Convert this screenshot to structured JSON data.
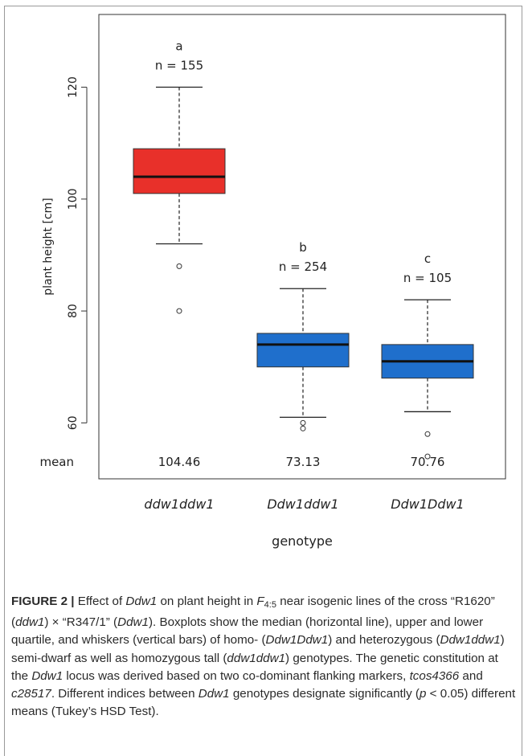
{
  "chart_data": {
    "type": "box",
    "ylabel": "plant height [cm]",
    "xlabel": "genotype",
    "ylim": [
      50,
      133
    ],
    "yticks": [
      60,
      80,
      100,
      120
    ],
    "row_label": "mean",
    "colors": {
      "ddw1ddw1": "#e8302a",
      "Ddw1ddw1": "#1f6fcc",
      "Ddw1Ddw1": "#1f6fcc"
    },
    "groups": [
      {
        "category": "ddw1ddw1",
        "letter": "a",
        "n_label": "n = 155",
        "mean": "104.46",
        "min": 92,
        "q1": 101,
        "median": 104,
        "q3": 109,
        "max": 120,
        "outliers": [
          88,
          80
        ]
      },
      {
        "category": "Ddw1ddw1",
        "letter": "b",
        "n_label": "n = 254",
        "mean": "73.13",
        "min": 61,
        "q1": 70,
        "median": 74,
        "q3": 76,
        "max": 84,
        "outliers": [
          60,
          59
        ]
      },
      {
        "category": "Ddw1Ddw1",
        "letter": "c",
        "n_label": "n = 105",
        "mean": "70.76",
        "min": 62,
        "q1": 68,
        "median": 71,
        "q3": 74,
        "max": 82,
        "outliers": [
          58,
          54
        ]
      }
    ]
  },
  "caption": {
    "label": "FIGURE 2 |",
    "t1": " Effect of ",
    "ddw1_a": "Ddw1",
    "t2": " on plant height in ",
    "f_main": "F",
    "f_sub": "4:5",
    "t3": " near isogenic lines of the cross “R1620” (",
    "ddw1_lower": "ddw1",
    "t4": ") × “R347/1” (",
    "ddw1_b": "Ddw1",
    "t5": "). Boxplots show the median (horizontal line), upper and lower quartile, and whiskers (vertical bars) of homo- (",
    "g_homo": "Ddw1Ddw1",
    "t6": ") and heterozygous (",
    "g_het": "Ddw1ddw1",
    "t7": ") semi-dwarf as well as homozygous tall (",
    "g_tall": "ddw1ddw1",
    "t8": ") genotypes. The genetic constitution at the ",
    "ddw1_c": "Ddw1",
    "t9": " locus was derived based on two co-dominant flanking markers, ",
    "m1": "tcos4366",
    "t10": " and ",
    "m2": "c28517",
    "t11": ". Different indices between ",
    "ddw1_d": "Ddw1",
    "t12": " genotypes designate significantly (",
    "p": "p",
    "t13": " < 0.05) different means (Tukey’s HSD Test)."
  }
}
